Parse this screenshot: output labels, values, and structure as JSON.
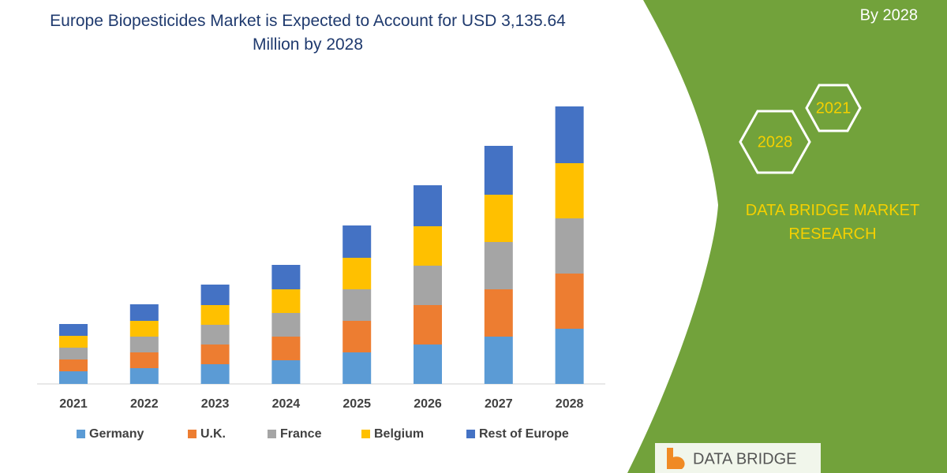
{
  "chart_data": {
    "type": "bar",
    "stacked": true,
    "title": "Europe Biopesticides Market is Expected to Account for USD 3,135.64 Million by 2028",
    "categories": [
      "2021",
      "2022",
      "2023",
      "2024",
      "2025",
      "2026",
      "2027",
      "2028"
    ],
    "series": [
      {
        "name": "Germany",
        "color": "#5b9bd5",
        "values": [
          16,
          20,
          25,
          30,
          40,
          50,
          60,
          70
        ]
      },
      {
        "name": "U.K.",
        "color": "#ed7d31",
        "values": [
          15,
          20,
          25,
          30,
          40,
          50,
          60,
          70
        ]
      },
      {
        "name": "France",
        "color": "#a5a5a5",
        "values": [
          15,
          20,
          25,
          30,
          40,
          50,
          60,
          70
        ]
      },
      {
        "name": "Belgium",
        "color": "#ffc000",
        "values": [
          15,
          20,
          25,
          30,
          40,
          50,
          60,
          70
        ]
      },
      {
        "name": "Rest of Europe",
        "color": "#4472c4",
        "values": [
          15,
          21,
          26,
          31,
          41,
          52,
          62,
          72
        ]
      }
    ]
  },
  "side_panel": {
    "caption": "By 2028",
    "hex_labels": [
      "2021",
      "2028"
    ],
    "brand": "DATA BRIDGE MARKET RESEARCH",
    "logo": "DATA BRIDGE"
  }
}
